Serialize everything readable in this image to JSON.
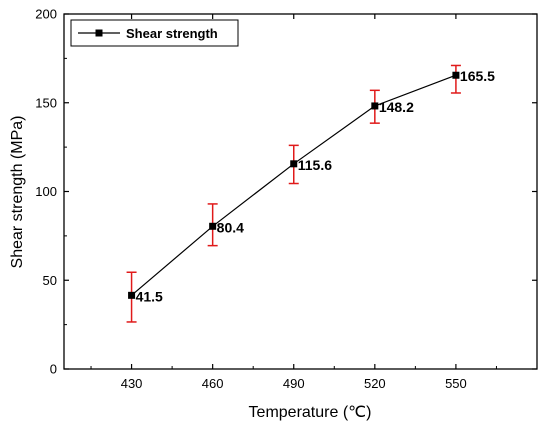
{
  "chart_data": {
    "type": "line",
    "xlabel": "Temperature (℃)",
    "ylabel": "Shear strength (MPa)",
    "x": [
      430,
      460,
      490,
      520,
      550
    ],
    "x_ticks": [
      "430",
      "460",
      "490",
      "520",
      "550"
    ],
    "xlim": [
      405,
      580
    ],
    "ylim": [
      0,
      200
    ],
    "y_ticks": [
      "0",
      "50",
      "100",
      "150",
      "200"
    ],
    "series": [
      {
        "name": "Shear strength",
        "values": [
          41.5,
          80.4,
          115.6,
          148.2,
          165.5
        ],
        "error_low": [
          26.5,
          69.5,
          104.5,
          138.5,
          155.5
        ],
        "error_high": [
          54.5,
          93.0,
          126.0,
          157.0,
          171.0
        ],
        "data_labels": [
          "41.5",
          "80.4",
          "115.6",
          "148.2",
          "165.5"
        ],
        "color": "#000000",
        "error_color": "#e01a1a",
        "marker": "square"
      }
    ],
    "legend_position": "top-left",
    "grid": false
  }
}
